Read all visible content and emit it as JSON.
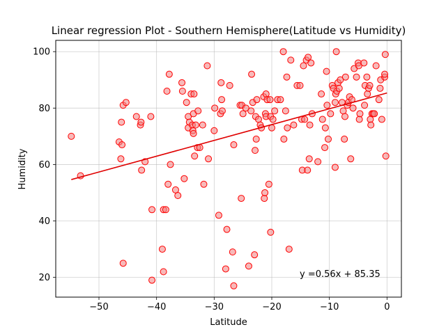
{
  "chart_data": {
    "type": "scatter",
    "title": "Linear regression Plot - Southern Hemisphere(Latitude vs Humidity)",
    "xlabel": "Latitude",
    "ylabel": "Humidity",
    "xlim": [
      -57.5,
      2.5
    ],
    "ylim": [
      13,
      104
    ],
    "xticks": [
      -50,
      -40,
      -30,
      -20,
      -10,
      0
    ],
    "xtick_labels": [
      "−50",
      "−40",
      "−30",
      "−20",
      "−10",
      "0"
    ],
    "yticks": [
      20,
      40,
      60,
      80,
      100
    ],
    "ytick_labels": [
      "20",
      "40",
      "60",
      "80",
      "100"
    ],
    "grid": true,
    "marker_edge_color": "#ff0000",
    "marker_face_color": "#f08080",
    "line_color": "#e00000",
    "regression": {
      "slope": 0.56,
      "intercept": 85.35,
      "x_range": [
        -54.8,
        0
      ]
    },
    "annotation": "y =0.56x + 85.35",
    "points": [
      [
        -54.8,
        70
      ],
      [
        -53.2,
        56
      ],
      [
        -46.5,
        68
      ],
      [
        -46.2,
        62
      ],
      [
        -46.1,
        75
      ],
      [
        -46.0,
        67
      ],
      [
        -45.8,
        81
      ],
      [
        -45.8,
        25
      ],
      [
        -45.3,
        82
      ],
      [
        -43.5,
        77
      ],
      [
        -42.8,
        74
      ],
      [
        -42.7,
        75
      ],
      [
        -42.6,
        58
      ],
      [
        -42.0,
        61
      ],
      [
        -41.0,
        77
      ],
      [
        -40.8,
        44
      ],
      [
        -40.8,
        19
      ],
      [
        -39.0,
        30
      ],
      [
        -38.8,
        22
      ],
      [
        -38.8,
        44
      ],
      [
        -38.4,
        44
      ],
      [
        -38.2,
        86
      ],
      [
        -38.0,
        53
      ],
      [
        -37.8,
        92
      ],
      [
        -37.6,
        60
      ],
      [
        -36.7,
        51
      ],
      [
        -36.3,
        49
      ],
      [
        -35.6,
        89
      ],
      [
        -35.5,
        86
      ],
      [
        -35.2,
        55
      ],
      [
        -34.8,
        82
      ],
      [
        -34.5,
        77
      ],
      [
        -34.5,
        73
      ],
      [
        -34.3,
        75
      ],
      [
        -34.0,
        85
      ],
      [
        -33.8,
        74
      ],
      [
        -33.7,
        72
      ],
      [
        -33.6,
        78
      ],
      [
        -33.6,
        71
      ],
      [
        -33.5,
        85
      ],
      [
        -33.4,
        63
      ],
      [
        -33.2,
        74
      ],
      [
        -32.9,
        66
      ],
      [
        -32.8,
        79
      ],
      [
        -32.5,
        66
      ],
      [
        -32.0,
        74
      ],
      [
        -31.8,
        53
      ],
      [
        -31.2,
        95
      ],
      [
        -31.0,
        62
      ],
      [
        -30.0,
        72
      ],
      [
        -29.9,
        80
      ],
      [
        -29.2,
        42
      ],
      [
        -28.9,
        78
      ],
      [
        -28.8,
        89
      ],
      [
        -28.7,
        83
      ],
      [
        -28.6,
        79
      ],
      [
        -28.0,
        23
      ],
      [
        -27.8,
        37
      ],
      [
        -27.3,
        88
      ],
      [
        -26.8,
        29
      ],
      [
        -26.6,
        67
      ],
      [
        -26.6,
        17
      ],
      [
        -25.5,
        81
      ],
      [
        -25.3,
        48
      ],
      [
        -25.2,
        81
      ],
      [
        -25.0,
        78
      ],
      [
        -24.5,
        80
      ],
      [
        -24.0,
        24
      ],
      [
        -23.6,
        79
      ],
      [
        -23.5,
        92
      ],
      [
        -23.3,
        82
      ],
      [
        -23.0,
        28
      ],
      [
        -22.9,
        65
      ],
      [
        -22.8,
        77
      ],
      [
        -22.7,
        69
      ],
      [
        -22.6,
        83
      ],
      [
        -22.3,
        76
      ],
      [
        -22.0,
        74
      ],
      [
        -21.8,
        73
      ],
      [
        -21.4,
        84
      ],
      [
        -21.3,
        48
      ],
      [
        -21.2,
        50
      ],
      [
        -21.1,
        78
      ],
      [
        -21.0,
        77
      ],
      [
        -21.0,
        85
      ],
      [
        -20.8,
        83
      ],
      [
        -20.5,
        53
      ],
      [
        -20.3,
        83
      ],
      [
        -20.2,
        36
      ],
      [
        -20.2,
        77
      ],
      [
        -20.0,
        73
      ],
      [
        -19.8,
        76
      ],
      [
        -19.5,
        79
      ],
      [
        -19.0,
        83
      ],
      [
        -18.5,
        83
      ],
      [
        -18.0,
        100
      ],
      [
        -17.9,
        69
      ],
      [
        -17.6,
        79
      ],
      [
        -17.4,
        91
      ],
      [
        -17.3,
        73
      ],
      [
        -17.0,
        30
      ],
      [
        -16.7,
        97
      ],
      [
        -16.2,
        74
      ],
      [
        -15.6,
        88
      ],
      [
        -15.1,
        88
      ],
      [
        -14.8,
        76
      ],
      [
        -14.7,
        58
      ],
      [
        -14.5,
        95
      ],
      [
        -14.3,
        76
      ],
      [
        -14.0,
        97
      ],
      [
        -13.8,
        58
      ],
      [
        -13.7,
        98
      ],
      [
        -13.5,
        62
      ],
      [
        -13.4,
        74
      ],
      [
        -13.2,
        96
      ],
      [
        -13.0,
        78
      ],
      [
        -12.0,
        61
      ],
      [
        -11.4,
        85
      ],
      [
        -11.2,
        76
      ],
      [
        -10.8,
        66
      ],
      [
        -10.7,
        73
      ],
      [
        -10.5,
        93
      ],
      [
        -10.4,
        81
      ],
      [
        -10.2,
        69
      ],
      [
        -9.8,
        78
      ],
      [
        -9.5,
        88
      ],
      [
        -9.3,
        87
      ],
      [
        -9.0,
        59
      ],
      [
        -9.0,
        82
      ],
      [
        -8.9,
        85
      ],
      [
        -8.8,
        100
      ],
      [
        -8.7,
        86
      ],
      [
        -8.5,
        89
      ],
      [
        -8.3,
        87
      ],
      [
        -8.1,
        90
      ],
      [
        -7.8,
        82
      ],
      [
        -7.6,
        79
      ],
      [
        -7.4,
        69
      ],
      [
        -7.3,
        77
      ],
      [
        -7.2,
        91
      ],
      [
        -6.9,
        81
      ],
      [
        -6.7,
        82
      ],
      [
        -6.5,
        84
      ],
      [
        -6.3,
        62
      ],
      [
        -6.1,
        83
      ],
      [
        -5.9,
        80
      ],
      [
        -5.7,
        94
      ],
      [
        -5.3,
        91
      ],
      [
        -5.0,
        96
      ],
      [
        -4.9,
        95
      ],
      [
        -4.8,
        76
      ],
      [
        -4.7,
        78
      ],
      [
        -4.0,
        96
      ],
      [
        -3.9,
        81
      ],
      [
        -3.8,
        88
      ],
      [
        -3.5,
        91
      ],
      [
        -3.4,
        85
      ],
      [
        -3.2,
        87
      ],
      [
        -3.0,
        88
      ],
      [
        -2.9,
        76
      ],
      [
        -2.8,
        74
      ],
      [
        -2.6,
        78
      ],
      [
        -2.4,
        78
      ],
      [
        -2.2,
        78
      ],
      [
        -1.9,
        95
      ],
      [
        -1.4,
        83
      ],
      [
        -1.2,
        87
      ],
      [
        -1.1,
        90
      ],
      [
        -0.9,
        76
      ],
      [
        -0.4,
        91
      ],
      [
        -0.4,
        92
      ],
      [
        -0.3,
        99
      ],
      [
        -0.2,
        63
      ]
    ]
  }
}
